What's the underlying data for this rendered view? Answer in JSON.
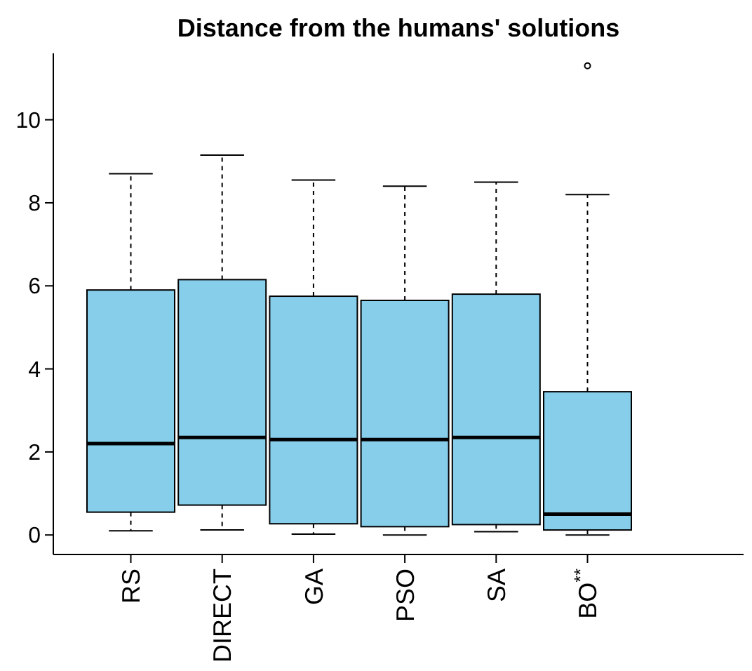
{
  "chart_data": {
    "type": "box",
    "title": "Distance from the humans' solutions",
    "categories": [
      "RS",
      "DIRECT",
      "GA",
      "PSO",
      "SA",
      "BO$^{**}$"
    ],
    "color": "#87ceeb",
    "ylim": [
      -0.47,
      11.6
    ],
    "yticks": [
      0,
      2,
      4,
      6,
      8,
      10
    ],
    "grid": false,
    "boxes": [
      {
        "low": 0.1,
        "q1": 0.55,
        "median": 2.2,
        "q3": 5.9,
        "high": 8.7
      },
      {
        "low": 0.12,
        "q1": 0.72,
        "median": 2.35,
        "q3": 6.15,
        "high": 9.15
      },
      {
        "low": 0.02,
        "q1": 0.27,
        "median": 2.3,
        "q3": 5.75,
        "high": 8.55
      },
      {
        "low": 0,
        "q1": 0.2,
        "median": 2.3,
        "q3": 5.65,
        "high": 8.4
      },
      {
        "low": 0.08,
        "q1": 0.25,
        "median": 2.35,
        "q3": 5.8,
        "high": 8.5
      },
      {
        "low": 0,
        "q1": 0.12,
        "median": 0.5,
        "q3": 3.45,
        "high": 8.2,
        "outliers": [
          11.3
        ]
      }
    ]
  }
}
